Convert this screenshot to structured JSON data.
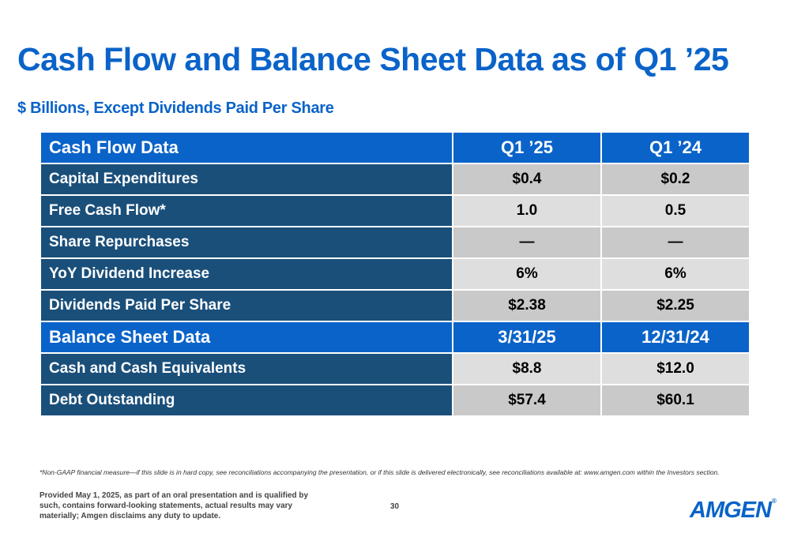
{
  "title": "Cash Flow and Balance Sheet Data as of Q1 ’25",
  "subtitle": "$ Billions, Except Dividends Paid Per Share",
  "cash_flow": {
    "header": {
      "label": "Cash Flow Data",
      "col1": "Q1 ’25",
      "col2": "Q1 ’24"
    },
    "rows": [
      {
        "label": "Capital Expenditures",
        "col1": "$0.4",
        "col2": "$0.2"
      },
      {
        "label": "Free Cash Flow*",
        "col1": "1.0",
        "col2": "0.5"
      },
      {
        "label": "Share Repurchases",
        "col1": "—",
        "col2": "—"
      },
      {
        "label": "YoY Dividend Increase",
        "col1": "6%",
        "col2": "6%"
      },
      {
        "label": "Dividends Paid Per Share",
        "col1": "$2.38",
        "col2": "$2.25"
      }
    ]
  },
  "balance_sheet": {
    "header": {
      "label": "Balance Sheet Data",
      "col1": "3/31/25",
      "col2": "12/31/24"
    },
    "rows": [
      {
        "label": "Cash and Cash Equivalents",
        "col1": "$8.8",
        "col2": "$12.0"
      },
      {
        "label": "Debt Outstanding",
        "col1": "$57.4",
        "col2": "$60.1"
      }
    ]
  },
  "footnote": "*Non-GAAP financial measure—if this slide is in hard copy, see reconciliations accompanying the presentation, or if this slide is delivered electronically, see reconciliations available at: www.amgen.com within the Investors section.",
  "disclaimer": "Provided May 1, 2025, as part of an oral presentation and is qualified by such, contains forward-looking statements, actual results may vary materially; Amgen disclaims any duty to update.",
  "page_number": "30",
  "logo": {
    "text": "AMGEN",
    "mark": "®"
  },
  "colors": {
    "accent_blue": "#0a63c9",
    "row_label_navy": "#1a4f7a",
    "cell_gray_dark": "#c9c9c9",
    "cell_gray_light": "#dedede"
  }
}
